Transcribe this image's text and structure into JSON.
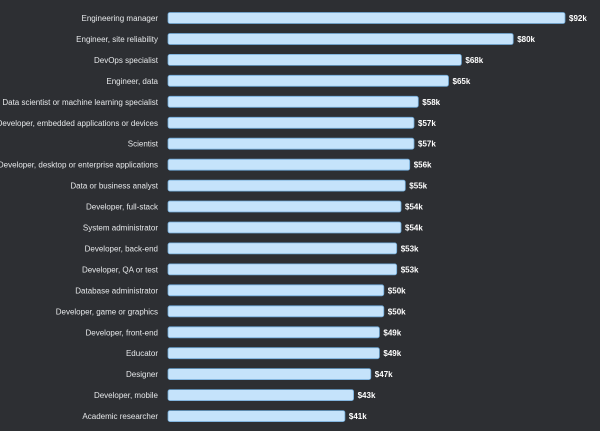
{
  "colors": {
    "background": "#2d2f33",
    "bar_fill": "#c5e3fb",
    "bar_stroke": "#6fa8d6",
    "label_text": "#e6e8ea",
    "value_text": "#ffffff"
  },
  "chart_data": {
    "type": "bar",
    "orientation": "horizontal",
    "title": "",
    "xlabel": "",
    "ylabel": "",
    "xlim": [
      0,
      92
    ],
    "grid": false,
    "categories": [
      "Engineering manager",
      "Engineer, site reliability",
      "DevOps specialist",
      "Engineer, data",
      "Data scientist or machine learning specialist",
      "Developer, embedded applications or devices",
      "Scientist",
      "Developer, desktop or enterprise applications",
      "Data or business analyst",
      "Developer, full-stack",
      "System administrator",
      "Developer, back-end",
      "Developer, QA or test",
      "Database administrator",
      "Developer, game or graphics",
      "Developer, front-end",
      "Educator",
      "Designer",
      "Developer, mobile",
      "Academic researcher"
    ],
    "values": [
      92,
      80,
      68,
      65,
      58,
      57,
      57,
      56,
      55,
      54,
      54,
      53,
      53,
      50,
      50,
      49,
      49,
      47,
      43,
      41
    ],
    "value_labels": [
      "$92k",
      "$80k",
      "$68k",
      "$65k",
      "$58k",
      "$57k",
      "$57k",
      "$56k",
      "$55k",
      "$54k",
      "$54k",
      "$53k",
      "$53k",
      "$50k",
      "$50k",
      "$49k",
      "$49k",
      "$47k",
      "$43k",
      "$41k"
    ]
  }
}
